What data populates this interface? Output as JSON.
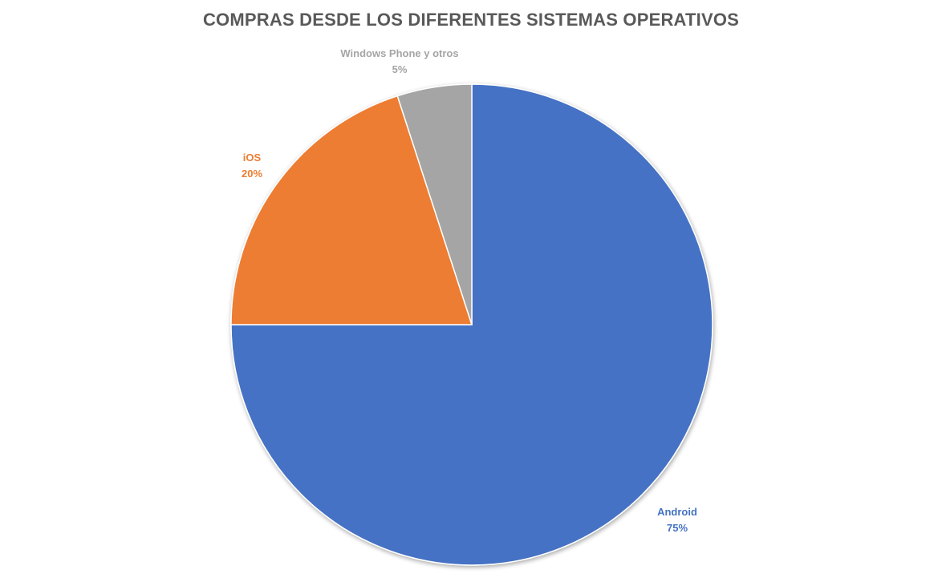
{
  "chart_data": {
    "type": "pie",
    "title": "COMPRAS DESDE LOS DIFERENTES SISTEMAS OPERATIVOS",
    "slices": [
      {
        "label": "Android",
        "value": 75,
        "value_label": "75%",
        "color": "#4472C4"
      },
      {
        "label": "iOS",
        "value": 20,
        "value_label": "20%",
        "color": "#ED7D31"
      },
      {
        "label": "Windows Phone y otros",
        "value": 5,
        "value_label": "5%",
        "color": "#A5A5A5"
      }
    ],
    "start_angle": "12 o'clock",
    "direction": "clockwise",
    "legend": "none",
    "data_labels": "outside-end, category name and percentage"
  }
}
